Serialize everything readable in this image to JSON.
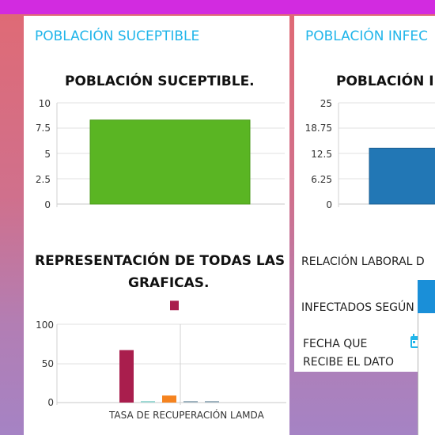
{
  "left_card": {
    "title": "POBLACIÓN SUCEPTIBLE",
    "chart_title": "POBLACIÓN SUCEPTIBLE.",
    "bottom_title_line1": "REPRESENTACIÓN DE TODAS LAS",
    "bottom_title_line2": "GRAFICAS.",
    "bottom_xlabel": "TASA DE RECUPERACIÓN LAMDA"
  },
  "right_card": {
    "title": "POBLACIÓN INFEC",
    "chart_title": "POBLACIÓN I",
    "relacion_label": "RELACIÓN LABORAL D",
    "infectados_label": "INFECTADOS SEGÚN",
    "fecha_line1": "FECHA QUE",
    "fecha_line2": "RECIBE EL DATO",
    "calendar_icon": "calendar-icon"
  },
  "colors": {
    "accent": "#20b5ea",
    "topbar": "#d22be0",
    "green_bar": "#5ab523",
    "blue_bar": "#2277b5"
  },
  "chart_data": [
    {
      "type": "bar",
      "title": "POBLACIÓN SUCEPTIBLE.",
      "categories": [
        ""
      ],
      "values": [
        8.3
      ],
      "yticks": [
        "10",
        "7.5",
        "5",
        "2.5",
        "0"
      ],
      "ylim": [
        0,
        10
      ],
      "color": "#5ab523"
    },
    {
      "type": "bar",
      "title": "POBLACIÓN I",
      "categories": [
        ""
      ],
      "values": [
        13.8
      ],
      "yticks": [
        "25",
        "18.75",
        "12.5",
        "6.25",
        "0"
      ],
      "ylim": [
        0,
        25
      ],
      "color": "#2277b5"
    },
    {
      "type": "bar",
      "title": "REPRESENTACIÓN DE TODAS LAS GRAFICAS.",
      "xlabel": "TASA DE RECUPERACIÓN LAMDA",
      "yticks": [
        "100",
        "50",
        "0"
      ],
      "ylim": [
        0,
        100
      ],
      "values": [
        67,
        2,
        9,
        1,
        1
      ],
      "colors": [
        "#a91e4d",
        "#9fd9d4",
        "#f5831f",
        "#9fb3bf",
        "#9fb3bf"
      ],
      "marker_value": 124,
      "marker_color": "#a91e4d"
    }
  ]
}
